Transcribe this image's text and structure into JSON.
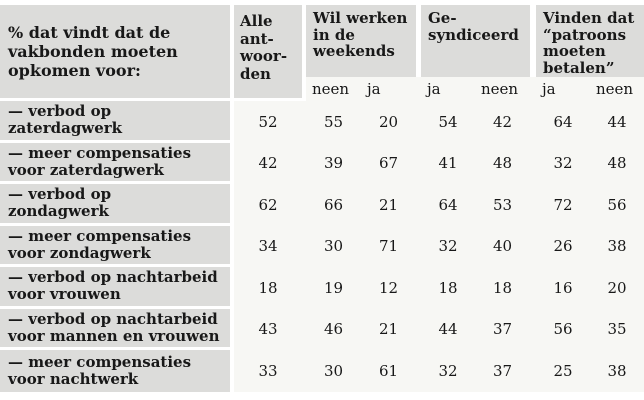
{
  "table": {
    "corner_header": "% dat vindt dat de\nvakbonden moeten\nopkomen voor:",
    "all_answers_header": "Alle\nant-\nwoor-\nden",
    "groups": [
      {
        "label": "Wil werken\nin de\nweekends",
        "sub": [
          "neen",
          "ja"
        ]
      },
      {
        "label": "Ge-\nsyndiceerd",
        "sub": [
          "ja",
          "neen"
        ]
      },
      {
        "label": "Vinden dat\n“patroons\nmoeten\nbetalen”",
        "sub": [
          "ja",
          "neen"
        ]
      }
    ],
    "rows": [
      {
        "label": "— verbod op\nzaterdagwerk",
        "values": [
          52,
          55,
          20,
          54,
          42,
          64,
          44
        ]
      },
      {
        "label": "— meer compensaties\nvoor zaterdagwerk",
        "values": [
          42,
          39,
          67,
          41,
          48,
          32,
          48
        ]
      },
      {
        "label": "— verbod op\nzondagwerk",
        "values": [
          62,
          66,
          21,
          64,
          53,
          72,
          56
        ]
      },
      {
        "label": "— meer compensaties\nvoor zondagwerk",
        "values": [
          34,
          30,
          71,
          32,
          40,
          26,
          38
        ]
      },
      {
        "label": "— verbod op nachtarbeid\nvoor vrouwen",
        "values": [
          18,
          19,
          12,
          18,
          18,
          16,
          20
        ]
      },
      {
        "label": "— verbod op nachtarbeid\nvoor mannen en vrouwen",
        "values": [
          43,
          46,
          21,
          44,
          37,
          56,
          35
        ]
      },
      {
        "label": "— meer compensaties\nvoor nachtwerk",
        "values": [
          33,
          30,
          61,
          32,
          37,
          25,
          38
        ]
      }
    ]
  },
  "colors": {
    "header_cell_gray": "#dcdcda",
    "body_background": "#f7f7f4",
    "text": "#181818",
    "page_background": "#ffffff"
  },
  "chart_data": {
    "type": "table",
    "title": "% dat vindt dat de vakbonden moeten opkomen voor:",
    "columns": [
      "Alle antwoorden",
      "Wil werken in de weekends — neen",
      "Wil werken in de weekends — ja",
      "Gesyndiceerd — ja",
      "Gesyndiceerd — neen",
      "Vinden dat “patroons moeten betalen” — ja",
      "Vinden dat “patroons moeten betalen” — neen"
    ],
    "categories": [
      "verbod op zaterdagwerk",
      "meer compensaties voor zaterdagwerk",
      "verbod op zondagwerk",
      "meer compensaties voor zondagwerk",
      "verbod op nachtarbeid voor vrouwen",
      "verbod op nachtarbeid voor mannen en vrouwen",
      "meer compensaties voor nachtwerk"
    ],
    "values": [
      [
        52,
        55,
        20,
        54,
        42,
        64,
        44
      ],
      [
        42,
        39,
        67,
        41,
        48,
        32,
        48
      ],
      [
        62,
        66,
        21,
        64,
        53,
        72,
        56
      ],
      [
        34,
        30,
        71,
        32,
        40,
        26,
        38
      ],
      [
        18,
        19,
        12,
        18,
        18,
        16,
        20
      ],
      [
        43,
        46,
        21,
        44,
        37,
        56,
        35
      ],
      [
        33,
        30,
        61,
        32,
        37,
        25,
        38
      ]
    ]
  }
}
